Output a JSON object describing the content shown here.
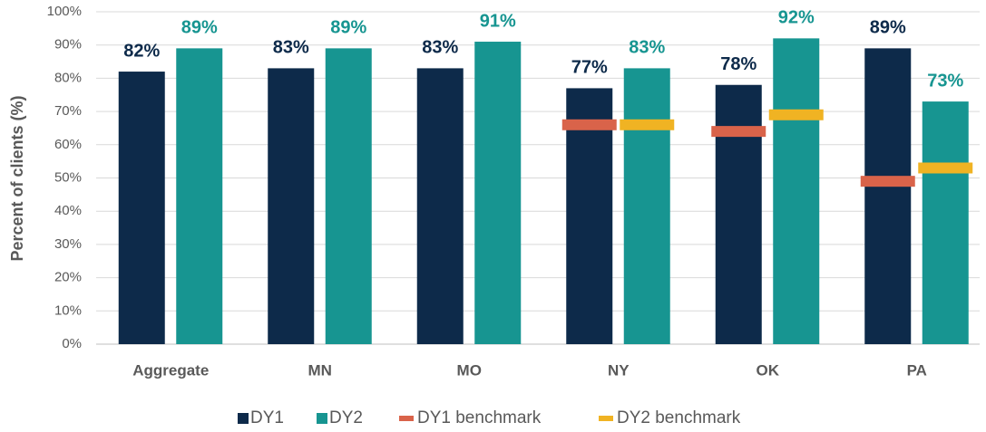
{
  "chart_data": {
    "type": "bar",
    "y_label": "Percent of clients (%)",
    "categories": [
      "Aggregate",
      "MN",
      "MO",
      "NY",
      "OK",
      "PA"
    ],
    "series": [
      {
        "name": "DY1",
        "color": "#0d2a4a",
        "values": [
          82,
          83,
          83,
          77,
          78,
          89
        ],
        "value_labels": [
          "82%",
          "83%",
          "83%",
          "77%",
          "78%",
          "89%"
        ]
      },
      {
        "name": "DY2",
        "color": "#179591",
        "values": [
          89,
          89,
          91,
          83,
          92,
          73
        ],
        "value_labels": [
          "89%",
          "89%",
          "91%",
          "83%",
          "92%",
          "73%"
        ]
      }
    ],
    "benchmarks": [
      {
        "name": "DY1 benchmark",
        "color": "#d9634a",
        "values": [
          null,
          null,
          null,
          66,
          64,
          49
        ]
      },
      {
        "name": "DY2 benchmark",
        "color": "#f0b323",
        "values": [
          null,
          null,
          null,
          66,
          69,
          53
        ]
      }
    ],
    "ylim": [
      0,
      100
    ],
    "yticks": [
      {
        "value": 0,
        "label": "0%"
      },
      {
        "value": 10,
        "label": "10%"
      },
      {
        "value": 20,
        "label": "20%"
      },
      {
        "value": 30,
        "label": "30%"
      },
      {
        "value": 40,
        "label": "40%"
      },
      {
        "value": 50,
        "label": "50%"
      },
      {
        "value": 60,
        "label": "60%"
      },
      {
        "value": 70,
        "label": "70%"
      },
      {
        "value": 80,
        "label": "80%"
      },
      {
        "value": 90,
        "label": "90%"
      },
      {
        "value": 100,
        "label": "100%"
      }
    ],
    "grid": true
  }
}
